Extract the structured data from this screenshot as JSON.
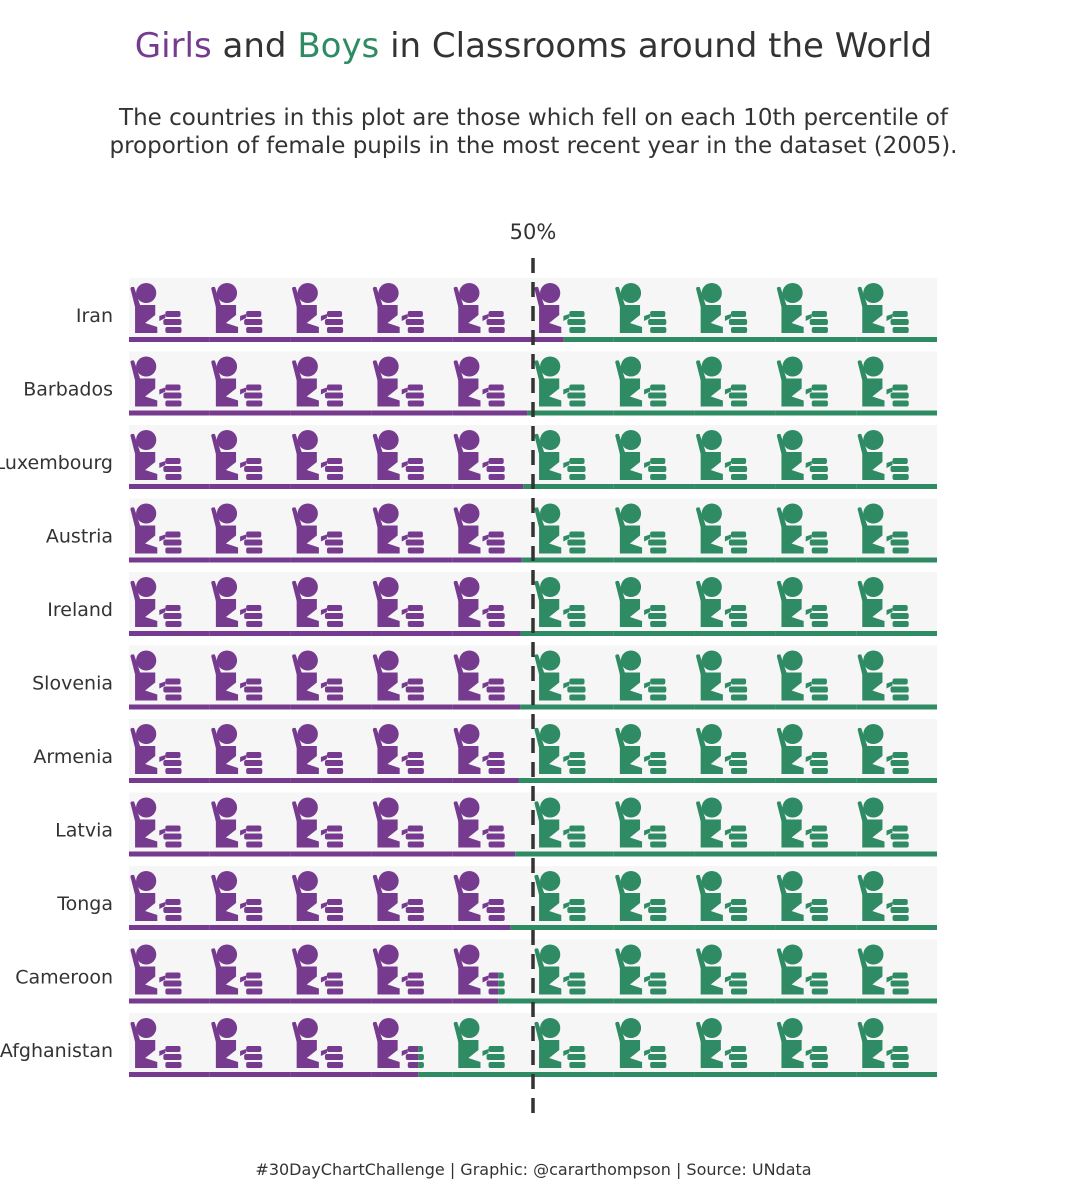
{
  "title": {
    "girls_word": "Girls",
    "and_word": "and",
    "boys_word": "Boys",
    "rest": "in Classrooms around the World"
  },
  "subtitle": {
    "line1": "The countries in this plot are those which fell on each 10th percentile of",
    "line2": "proportion of female pupils in the most recent year in the dataset (2005)."
  },
  "caption": "#30DayChartChallenge | Graphic: @cararthompson | Source: UNdata",
  "colors": {
    "girls": "#763b8f",
    "boys": "#2e8b63",
    "reference_line": "#333333",
    "icon_background": "#f6f6f6"
  },
  "chart_data": {
    "type": "bar",
    "orientation": "horizontal",
    "stacked": true,
    "categories": [
      "Iran",
      "Barbados",
      "Luxembourg",
      "Austria",
      "Ireland",
      "Slovenia",
      "Armenia",
      "Latvia",
      "Tonga",
      "Cameroon",
      "Afghanistan"
    ],
    "series": [
      {
        "name": "Girls",
        "values": [
          53.8,
          49.3,
          48.8,
          48.6,
          48.5,
          48.4,
          48.2,
          47.8,
          47.2,
          45.7,
          35.8
        ]
      },
      {
        "name": "Boys",
        "values": [
          46.2,
          50.7,
          51.2,
          51.4,
          51.5,
          51.6,
          51.8,
          52.2,
          52.8,
          54.3,
          64.2
        ]
      }
    ],
    "xlim": [
      0,
      100
    ],
    "unit": "%",
    "reference_line": {
      "value": 50,
      "label": "50%"
    },
    "icons_per_row": 10,
    "icon": "pupil-at-desk-icon",
    "legend": "none"
  }
}
